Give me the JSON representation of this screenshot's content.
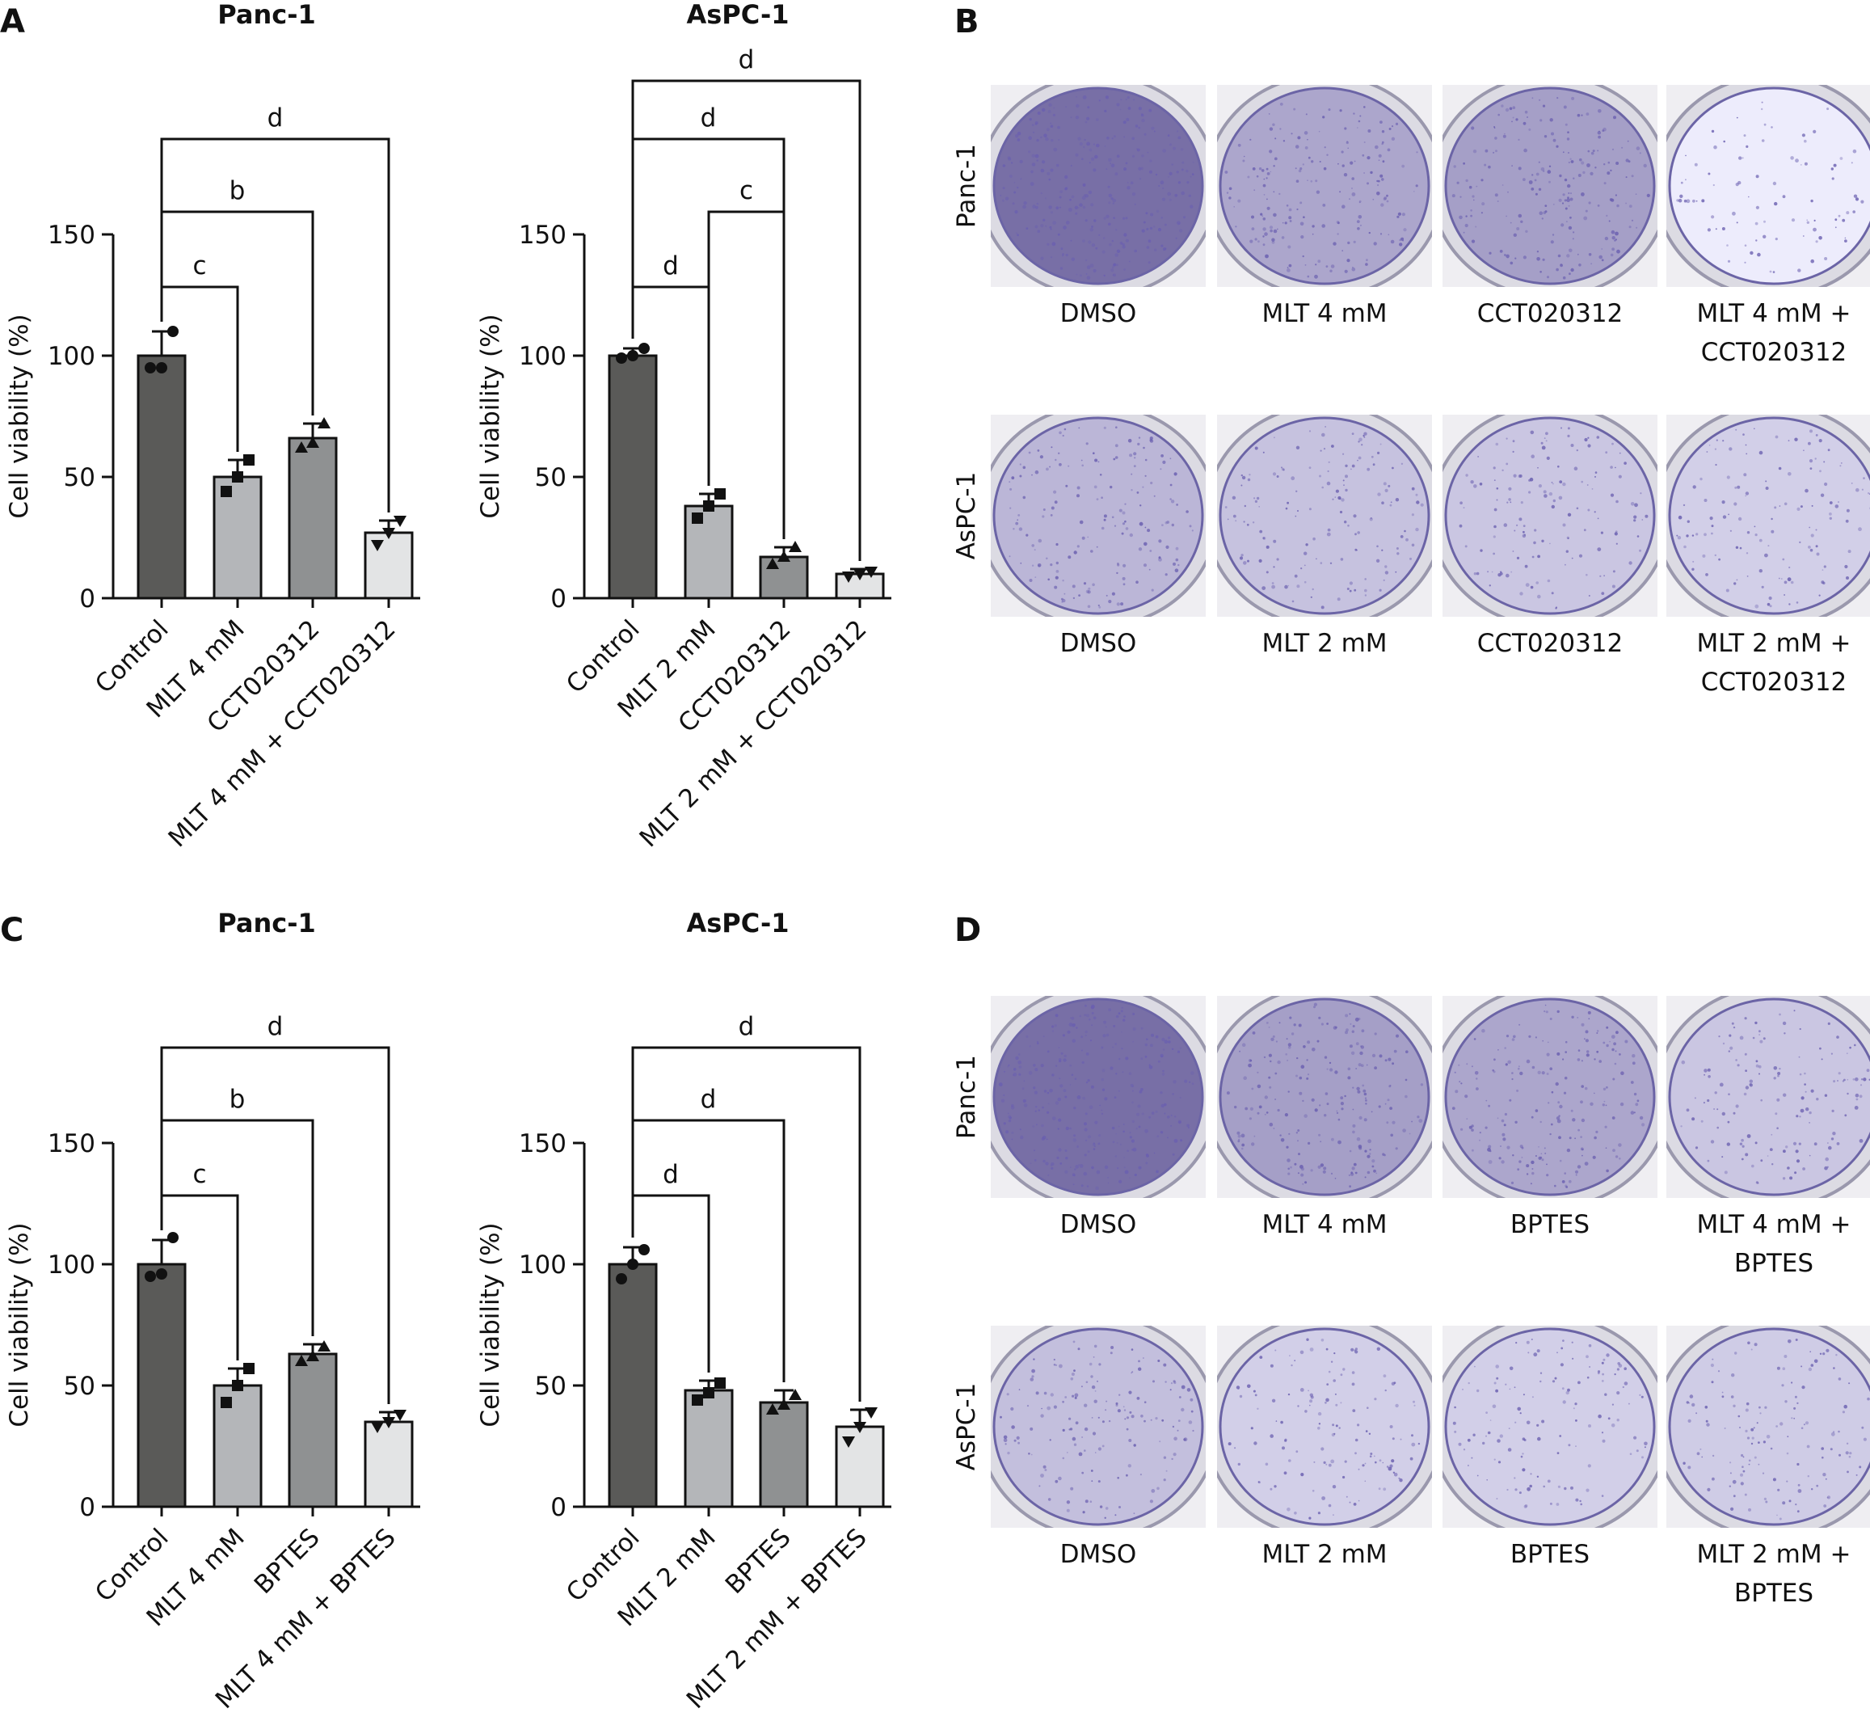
{
  "panels": {
    "A": "A",
    "B": "B",
    "C": "C",
    "D": "D"
  },
  "colors": {
    "control_bar": "#5a5a58",
    "treat1_bar": "#b4b6b9",
    "treat2_bar": "#8f9192",
    "combo_bar": "#e3e4e5",
    "stain": "#6a5fb0",
    "plate_bg": "#efeef2"
  },
  "chart_data": [
    {
      "id": "A-left",
      "type": "bar",
      "title": "Panc-1",
      "ylabel": "Cell viability (%)",
      "ylim": [
        0,
        150
      ],
      "yticks": [
        0,
        50,
        100,
        150
      ],
      "categories": [
        "Control",
        "MLT 4 mM",
        "CCT020312",
        "MLT 4 mM + CCT020312"
      ],
      "values": [
        100,
        50,
        66,
        27
      ],
      "errors": [
        10,
        7,
        6,
        5
      ],
      "points": [
        [
          95,
          95,
          110
        ],
        [
          44,
          50,
          57
        ],
        [
          62,
          64,
          72
        ],
        [
          22,
          27,
          32
        ]
      ],
      "markers": [
        "circle",
        "square",
        "triangle",
        "triangle-down"
      ],
      "comparisons": [
        {
          "from": 0,
          "to": 1,
          "label": "c"
        },
        {
          "from": 0,
          "to": 2,
          "label": "b"
        },
        {
          "from": 0,
          "to": 3,
          "label": "d"
        }
      ]
    },
    {
      "id": "A-right",
      "type": "bar",
      "title": "AsPC-1",
      "ylabel": "Cell viability (%)",
      "ylim": [
        0,
        150
      ],
      "yticks": [
        0,
        50,
        100,
        150
      ],
      "categories": [
        "Control",
        "MLT 2 mM",
        "CCT020312",
        "MLT 2 mM + CCT020312"
      ],
      "values": [
        100,
        38,
        17,
        10
      ],
      "errors": [
        3,
        5,
        4,
        2
      ],
      "points": [
        [
          99,
          100,
          103
        ],
        [
          33,
          38,
          43
        ],
        [
          14,
          17,
          21
        ],
        [
          9,
          10,
          11
        ]
      ],
      "markers": [
        "circle",
        "square",
        "triangle",
        "triangle-down"
      ],
      "comparisons": [
        {
          "from": 0,
          "to": 1,
          "label": "d"
        },
        {
          "from": 1,
          "to": 2,
          "label": "c"
        },
        {
          "from": 0,
          "to": 2,
          "label": "d"
        },
        {
          "from": 0,
          "to": 3,
          "label": "d"
        }
      ]
    },
    {
      "id": "C-left",
      "type": "bar",
      "title": "Panc-1",
      "ylabel": "Cell viability (%)",
      "ylim": [
        0,
        150
      ],
      "yticks": [
        0,
        50,
        100,
        150
      ],
      "categories": [
        "Control",
        "MLT 4 mM",
        "BPTES",
        "MLT 4 mM + BPTES"
      ],
      "values": [
        100,
        50,
        63,
        35
      ],
      "errors": [
        10,
        7,
        4,
        4
      ],
      "points": [
        [
          95,
          96,
          111
        ],
        [
          43,
          50,
          57
        ],
        [
          60,
          62,
          66
        ],
        [
          33,
          35,
          38
        ]
      ],
      "markers": [
        "circle",
        "square",
        "triangle",
        "triangle-down"
      ],
      "comparisons": [
        {
          "from": 0,
          "to": 1,
          "label": "c"
        },
        {
          "from": 0,
          "to": 2,
          "label": "b"
        },
        {
          "from": 0,
          "to": 3,
          "label": "d"
        }
      ]
    },
    {
      "id": "C-right",
      "type": "bar",
      "title": "AsPC-1",
      "ylabel": "Cell viability (%)",
      "ylim": [
        0,
        150
      ],
      "yticks": [
        0,
        50,
        100,
        150
      ],
      "categories": [
        "Control",
        "MLT 2 mM",
        "BPTES",
        "MLT 2 mM + BPTES"
      ],
      "values": [
        100,
        48,
        43,
        33
      ],
      "errors": [
        7,
        4,
        5,
        7
      ],
      "points": [
        [
          94,
          100,
          106
        ],
        [
          44,
          47,
          51
        ],
        [
          40,
          42,
          46
        ],
        [
          27,
          33,
          39
        ]
      ],
      "markers": [
        "circle",
        "square",
        "triangle",
        "triangle-down"
      ],
      "comparisons": [
        {
          "from": 0,
          "to": 1,
          "label": "d"
        },
        {
          "from": 0,
          "to": 2,
          "label": "d"
        },
        {
          "from": 0,
          "to": 3,
          "label": "d"
        }
      ]
    }
  ],
  "plates": [
    {
      "id": "B-panc",
      "row_label": "Panc-1",
      "labels": [
        [
          "DMSO"
        ],
        [
          "MLT 4 mM"
        ],
        [
          "CCT020312"
        ],
        [
          "MLT 4 mM +",
          "CCT020312"
        ]
      ],
      "stain_density": [
        0.9,
        0.55,
        0.6,
        0.12
      ]
    },
    {
      "id": "B-aspc",
      "row_label": "AsPC-1",
      "labels": [
        [
          "DMSO"
        ],
        [
          "MLT 2 mM"
        ],
        [
          "CCT020312"
        ],
        [
          "MLT 2 mM +",
          "CCT020312"
        ]
      ],
      "stain_density": [
        0.45,
        0.38,
        0.35,
        0.3
      ]
    },
    {
      "id": "D-panc",
      "row_label": "Panc-1",
      "labels": [
        [
          "DMSO"
        ],
        [
          "MLT 4 mM"
        ],
        [
          "BPTES"
        ],
        [
          "MLT 4 mM +",
          "BPTES"
        ]
      ],
      "stain_density": [
        0.9,
        0.6,
        0.55,
        0.35
      ]
    },
    {
      "id": "D-aspc",
      "row_label": "AsPC-1",
      "labels": [
        [
          "DMSO"
        ],
        [
          "MLT 2 mM"
        ],
        [
          "BPTES"
        ],
        [
          "MLT 2 mM +",
          "BPTES"
        ]
      ],
      "stain_density": [
        0.4,
        0.3,
        0.3,
        0.32
      ]
    }
  ]
}
